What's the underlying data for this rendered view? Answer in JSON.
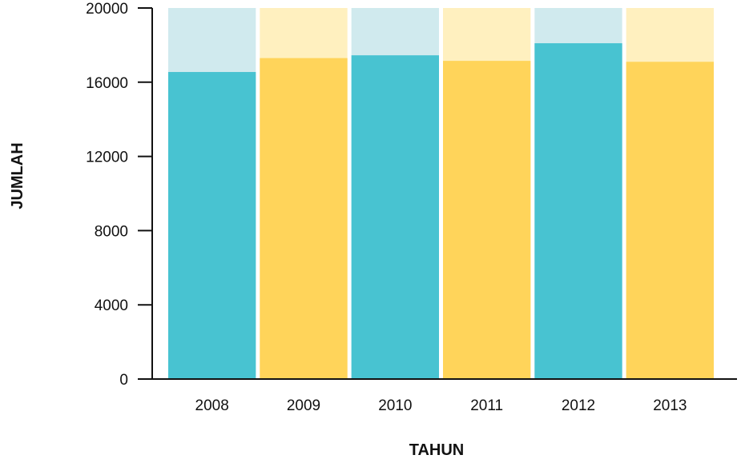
{
  "chart_data": {
    "type": "bar",
    "categories": [
      "2008",
      "2009",
      "2010",
      "2011",
      "2012",
      "2013"
    ],
    "values": [
      16550,
      17300,
      17450,
      17150,
      18100,
      17100
    ],
    "ylim": [
      0,
      20000
    ],
    "yticks": [
      "0",
      "4000",
      "8000",
      "12000",
      "16000",
      "20000"
    ],
    "xlabel": "TAHUN",
    "ylabel": "JUMLAH",
    "grid": false,
    "legend": "none",
    "colors": {
      "bar_teal": "#48c3d1",
      "bar_teal_light": "#d0eaee",
      "bar_yellow": "#ffd45a",
      "bar_yellow_light": "#fff0bf",
      "axis": "#111111"
    },
    "bar_colors": [
      "teal",
      "yellow",
      "teal",
      "yellow",
      "teal",
      "yellow"
    ]
  }
}
